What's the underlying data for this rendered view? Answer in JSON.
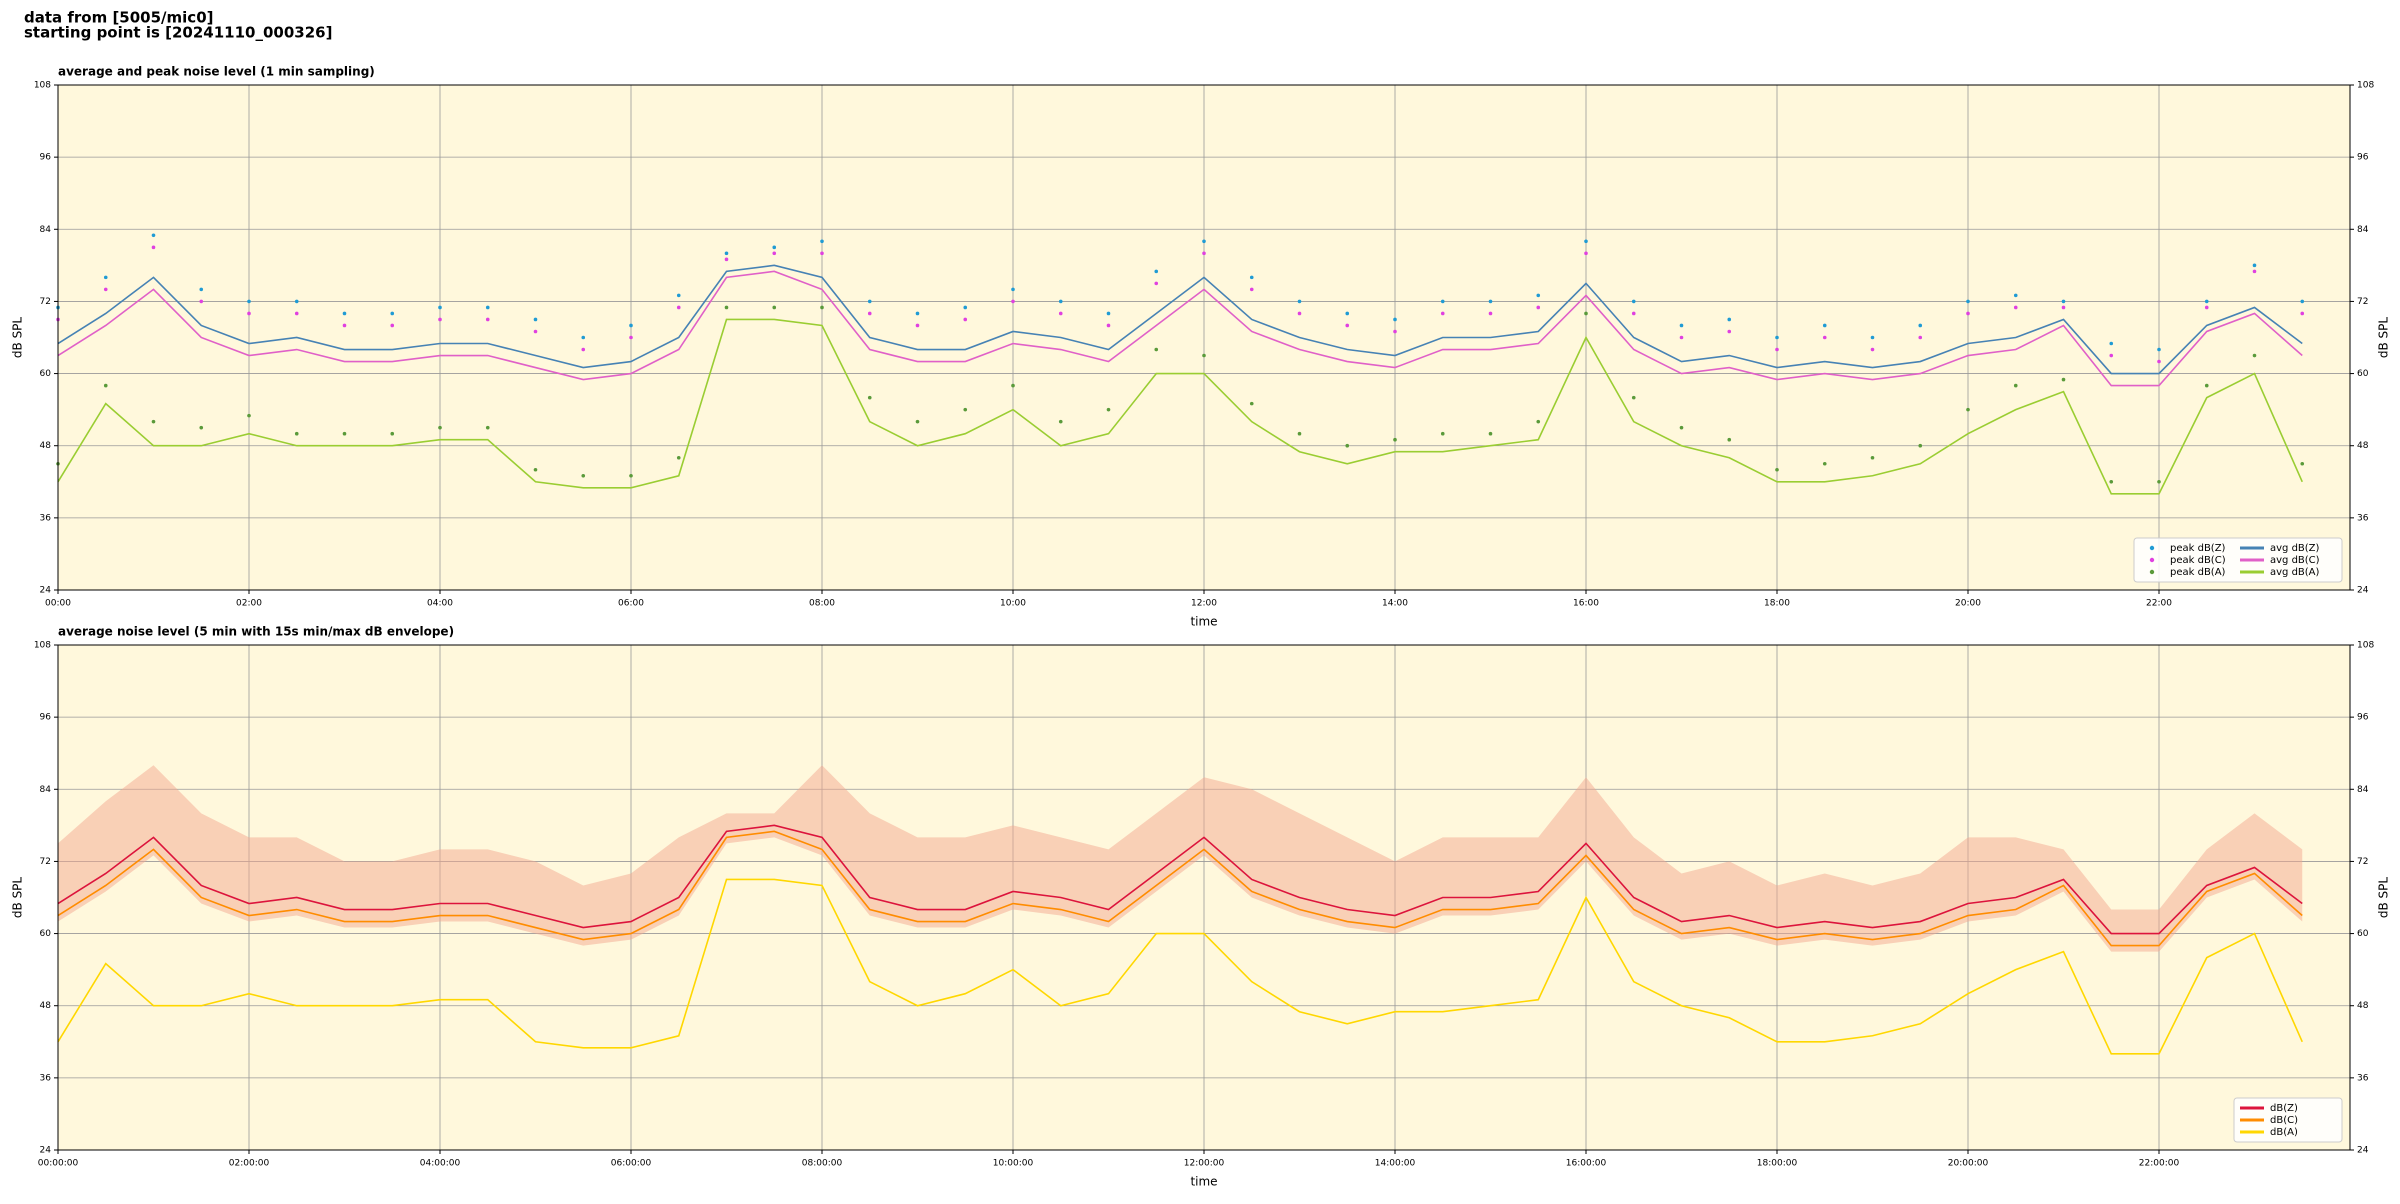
{
  "header": {
    "line1": "data from [5005/mic0]",
    "line2": "starting point is [20241110_000326]"
  },
  "chart_data": [
    {
      "type": "line",
      "title": "average and peak noise level (1 min sampling)",
      "xlabel": "time",
      "ylabel": "dB SPL",
      "y2label": "dB SPL",
      "x": [
        0,
        0.5,
        1,
        1.5,
        2,
        2.5,
        3,
        3.5,
        4,
        4.5,
        5,
        5.5,
        6,
        6.5,
        7,
        7.5,
        8,
        8.5,
        9,
        9.5,
        10,
        10.5,
        11,
        11.5,
        12,
        12.5,
        13,
        13.5,
        14,
        14.5,
        15,
        15.5,
        16,
        16.5,
        17,
        17.5,
        18,
        18.5,
        19,
        19.5,
        20,
        20.5,
        21,
        21.5,
        22,
        22.5,
        23,
        23.5
      ],
      "xlim": [
        0,
        24
      ],
      "xticks": [
        {
          "value": 0,
          "label": "00:00"
        },
        {
          "value": 2,
          "label": "02:00"
        },
        {
          "value": 4,
          "label": "04:00"
        },
        {
          "value": 6,
          "label": "06:00"
        },
        {
          "value": 8,
          "label": "08:00"
        },
        {
          "value": 10,
          "label": "10:00"
        },
        {
          "value": 12,
          "label": "12:00"
        },
        {
          "value": 14,
          "label": "14:00"
        },
        {
          "value": 16,
          "label": "16:00"
        },
        {
          "value": 18,
          "label": "18:00"
        },
        {
          "value": 20,
          "label": "20:00"
        },
        {
          "value": 22,
          "label": "22:00"
        }
      ],
      "ylim": [
        24,
        108
      ],
      "yticks": [
        24,
        36,
        48,
        60,
        72,
        84,
        96,
        108
      ],
      "y2lim": [
        24,
        108
      ],
      "y2ticks": [
        24,
        36,
        48,
        60,
        72,
        84,
        96,
        108
      ],
      "grid": true,
      "legend": "lower right",
      "legend_columns": 2,
      "background": "#fff8dc",
      "series": [
        {
          "name": "peak dB(Z)",
          "type": "scatter",
          "color": "#1f9bd4",
          "values": [
            71,
            76,
            83,
            74,
            72,
            72,
            70,
            70,
            71,
            71,
            69,
            66,
            68,
            73,
            80,
            81,
            82,
            72,
            70,
            71,
            74,
            72,
            70,
            77,
            82,
            76,
            72,
            70,
            69,
            72,
            72,
            73,
            82,
            72,
            68,
            69,
            66,
            68,
            66,
            68,
            72,
            73,
            72,
            65,
            64,
            72,
            78,
            72
          ]
        },
        {
          "name": "peak dB(C)",
          "type": "scatter",
          "color": "#e040e0",
          "values": [
            69,
            74,
            81,
            72,
            70,
            70,
            68,
            68,
            69,
            69,
            67,
            64,
            66,
            71,
            79,
            80,
            80,
            70,
            68,
            69,
            72,
            70,
            68,
            75,
            80,
            74,
            70,
            68,
            67,
            70,
            70,
            71,
            80,
            70,
            66,
            67,
            64,
            66,
            64,
            66,
            70,
            71,
            71,
            63,
            62,
            71,
            77,
            70
          ]
        },
        {
          "name": "peak dB(A)",
          "type": "scatter",
          "color": "#5a9a3a",
          "values": [
            45,
            58,
            52,
            51,
            53,
            50,
            50,
            50,
            51,
            51,
            44,
            43,
            43,
            46,
            71,
            71,
            71,
            56,
            52,
            54,
            58,
            52,
            54,
            64,
            63,
            55,
            50,
            48,
            49,
            50,
            50,
            52,
            70,
            56,
            51,
            49,
            44,
            45,
            46,
            48,
            54,
            58,
            59,
            42,
            42,
            58,
            63,
            45
          ]
        },
        {
          "name": "avg dB(Z)",
          "type": "line",
          "color": "#4682b4",
          "values": [
            65,
            70,
            76,
            68,
            65,
            66,
            64,
            64,
            65,
            65,
            63,
            61,
            62,
            66,
            77,
            78,
            76,
            66,
            64,
            64,
            67,
            66,
            64,
            70,
            76,
            69,
            66,
            64,
            63,
            66,
            66,
            67,
            75,
            66,
            62,
            63,
            61,
            62,
            61,
            62,
            65,
            66,
            69,
            60,
            60,
            68,
            71,
            65
          ]
        },
        {
          "name": "avg dB(C)",
          "type": "line",
          "color": "#e060c8",
          "values": [
            63,
            68,
            74,
            66,
            63,
            64,
            62,
            62,
            63,
            63,
            61,
            59,
            60,
            64,
            76,
            77,
            74,
            64,
            62,
            62,
            65,
            64,
            62,
            68,
            74,
            67,
            64,
            62,
            61,
            64,
            64,
            65,
            73,
            64,
            60,
            61,
            59,
            60,
            59,
            60,
            63,
            64,
            68,
            58,
            58,
            67,
            70,
            63
          ]
        },
        {
          "name": "avg dB(A)",
          "type": "line",
          "color": "#9acd32",
          "values": [
            42,
            55,
            48,
            48,
            50,
            48,
            48,
            48,
            49,
            49,
            42,
            41,
            41,
            43,
            69,
            69,
            68,
            52,
            48,
            50,
            54,
            48,
            50,
            60,
            60,
            52,
            47,
            45,
            47,
            47,
            48,
            49,
            66,
            52,
            48,
            46,
            42,
            42,
            43,
            45,
            50,
            54,
            57,
            40,
            40,
            56,
            60,
            42
          ]
        }
      ]
    },
    {
      "type": "line",
      "title": "average noise level (5 min with 15s min/max dB envelope)",
      "xlabel": "time",
      "ylabel": "dB SPL",
      "y2label": "dB SPL",
      "x": [
        0,
        0.5,
        1,
        1.5,
        2,
        2.5,
        3,
        3.5,
        4,
        4.5,
        5,
        5.5,
        6,
        6.5,
        7,
        7.5,
        8,
        8.5,
        9,
        9.5,
        10,
        10.5,
        11,
        11.5,
        12,
        12.5,
        13,
        13.5,
        14,
        14.5,
        15,
        15.5,
        16,
        16.5,
        17,
        17.5,
        18,
        18.5,
        19,
        19.5,
        20,
        20.5,
        21,
        21.5,
        22,
        22.5,
        23,
        23.5
      ],
      "xlim": [
        0,
        24
      ],
      "xticks": [
        {
          "value": 0,
          "label": "00:00:00"
        },
        {
          "value": 2,
          "label": "02:00:00"
        },
        {
          "value": 4,
          "label": "04:00:00"
        },
        {
          "value": 6,
          "label": "06:00:00"
        },
        {
          "value": 8,
          "label": "08:00:00"
        },
        {
          "value": 10,
          "label": "10:00:00"
        },
        {
          "value": 12,
          "label": "12:00:00"
        },
        {
          "value": 14,
          "label": "14:00:00"
        },
        {
          "value": 16,
          "label": "16:00:00"
        },
        {
          "value": 18,
          "label": "18:00:00"
        },
        {
          "value": 20,
          "label": "20:00:00"
        },
        {
          "value": 22,
          "label": "22:00:00"
        }
      ],
      "ylim": [
        24,
        108
      ],
      "yticks": [
        24,
        36,
        48,
        60,
        72,
        84,
        96,
        108
      ],
      "y2lim": [
        24,
        108
      ],
      "y2ticks": [
        24,
        36,
        48,
        60,
        72,
        84,
        96,
        108
      ],
      "grid": true,
      "legend": "lower right",
      "legend_columns": 1,
      "background": "#fff8dc",
      "envelope": {
        "color": "#f4a890",
        "upper": [
          75,
          82,
          88,
          80,
          76,
          76,
          72,
          72,
          74,
          74,
          72,
          68,
          70,
          76,
          80,
          80,
          88,
          80,
          76,
          76,
          78,
          76,
          74,
          80,
          86,
          84,
          80,
          76,
          72,
          76,
          76,
          76,
          86,
          76,
          70,
          72,
          68,
          70,
          68,
          70,
          76,
          76,
          74,
          64,
          64,
          74,
          80,
          74
        ],
        "lower": [
          62,
          67,
          73,
          65,
          62,
          63,
          61,
          61,
          62,
          62,
          60,
          58,
          59,
          63,
          75,
          76,
          73,
          63,
          61,
          61,
          64,
          63,
          61,
          67,
          73,
          66,
          63,
          61,
          60,
          63,
          63,
          64,
          72,
          63,
          59,
          60,
          58,
          59,
          58,
          59,
          62,
          63,
          67,
          57,
          57,
          66,
          69,
          62
        ]
      },
      "series": [
        {
          "name": "dB(Z)",
          "type": "line",
          "color": "#dc143c",
          "values": [
            65,
            70,
            76,
            68,
            65,
            66,
            64,
            64,
            65,
            65,
            63,
            61,
            62,
            66,
            77,
            78,
            76,
            66,
            64,
            64,
            67,
            66,
            64,
            70,
            76,
            69,
            66,
            64,
            63,
            66,
            66,
            67,
            75,
            66,
            62,
            63,
            61,
            62,
            61,
            62,
            65,
            66,
            69,
            60,
            60,
            68,
            71,
            65
          ]
        },
        {
          "name": "dB(C)",
          "type": "line",
          "color": "#ff8c00",
          "values": [
            63,
            68,
            74,
            66,
            63,
            64,
            62,
            62,
            63,
            63,
            61,
            59,
            60,
            64,
            76,
            77,
            74,
            64,
            62,
            62,
            65,
            64,
            62,
            68,
            74,
            67,
            64,
            62,
            61,
            64,
            64,
            65,
            73,
            64,
            60,
            61,
            59,
            60,
            59,
            60,
            63,
            64,
            68,
            58,
            58,
            67,
            70,
            63
          ]
        },
        {
          "name": "dB(A)",
          "type": "line",
          "color": "#ffd700",
          "values": [
            42,
            55,
            48,
            48,
            50,
            48,
            48,
            48,
            49,
            49,
            42,
            41,
            41,
            43,
            69,
            69,
            68,
            52,
            48,
            50,
            54,
            48,
            50,
            60,
            60,
            52,
            47,
            45,
            47,
            47,
            48,
            49,
            66,
            52,
            48,
            46,
            42,
            42,
            43,
            45,
            50,
            54,
            57,
            40,
            40,
            56,
            60,
            42
          ]
        }
      ]
    }
  ]
}
